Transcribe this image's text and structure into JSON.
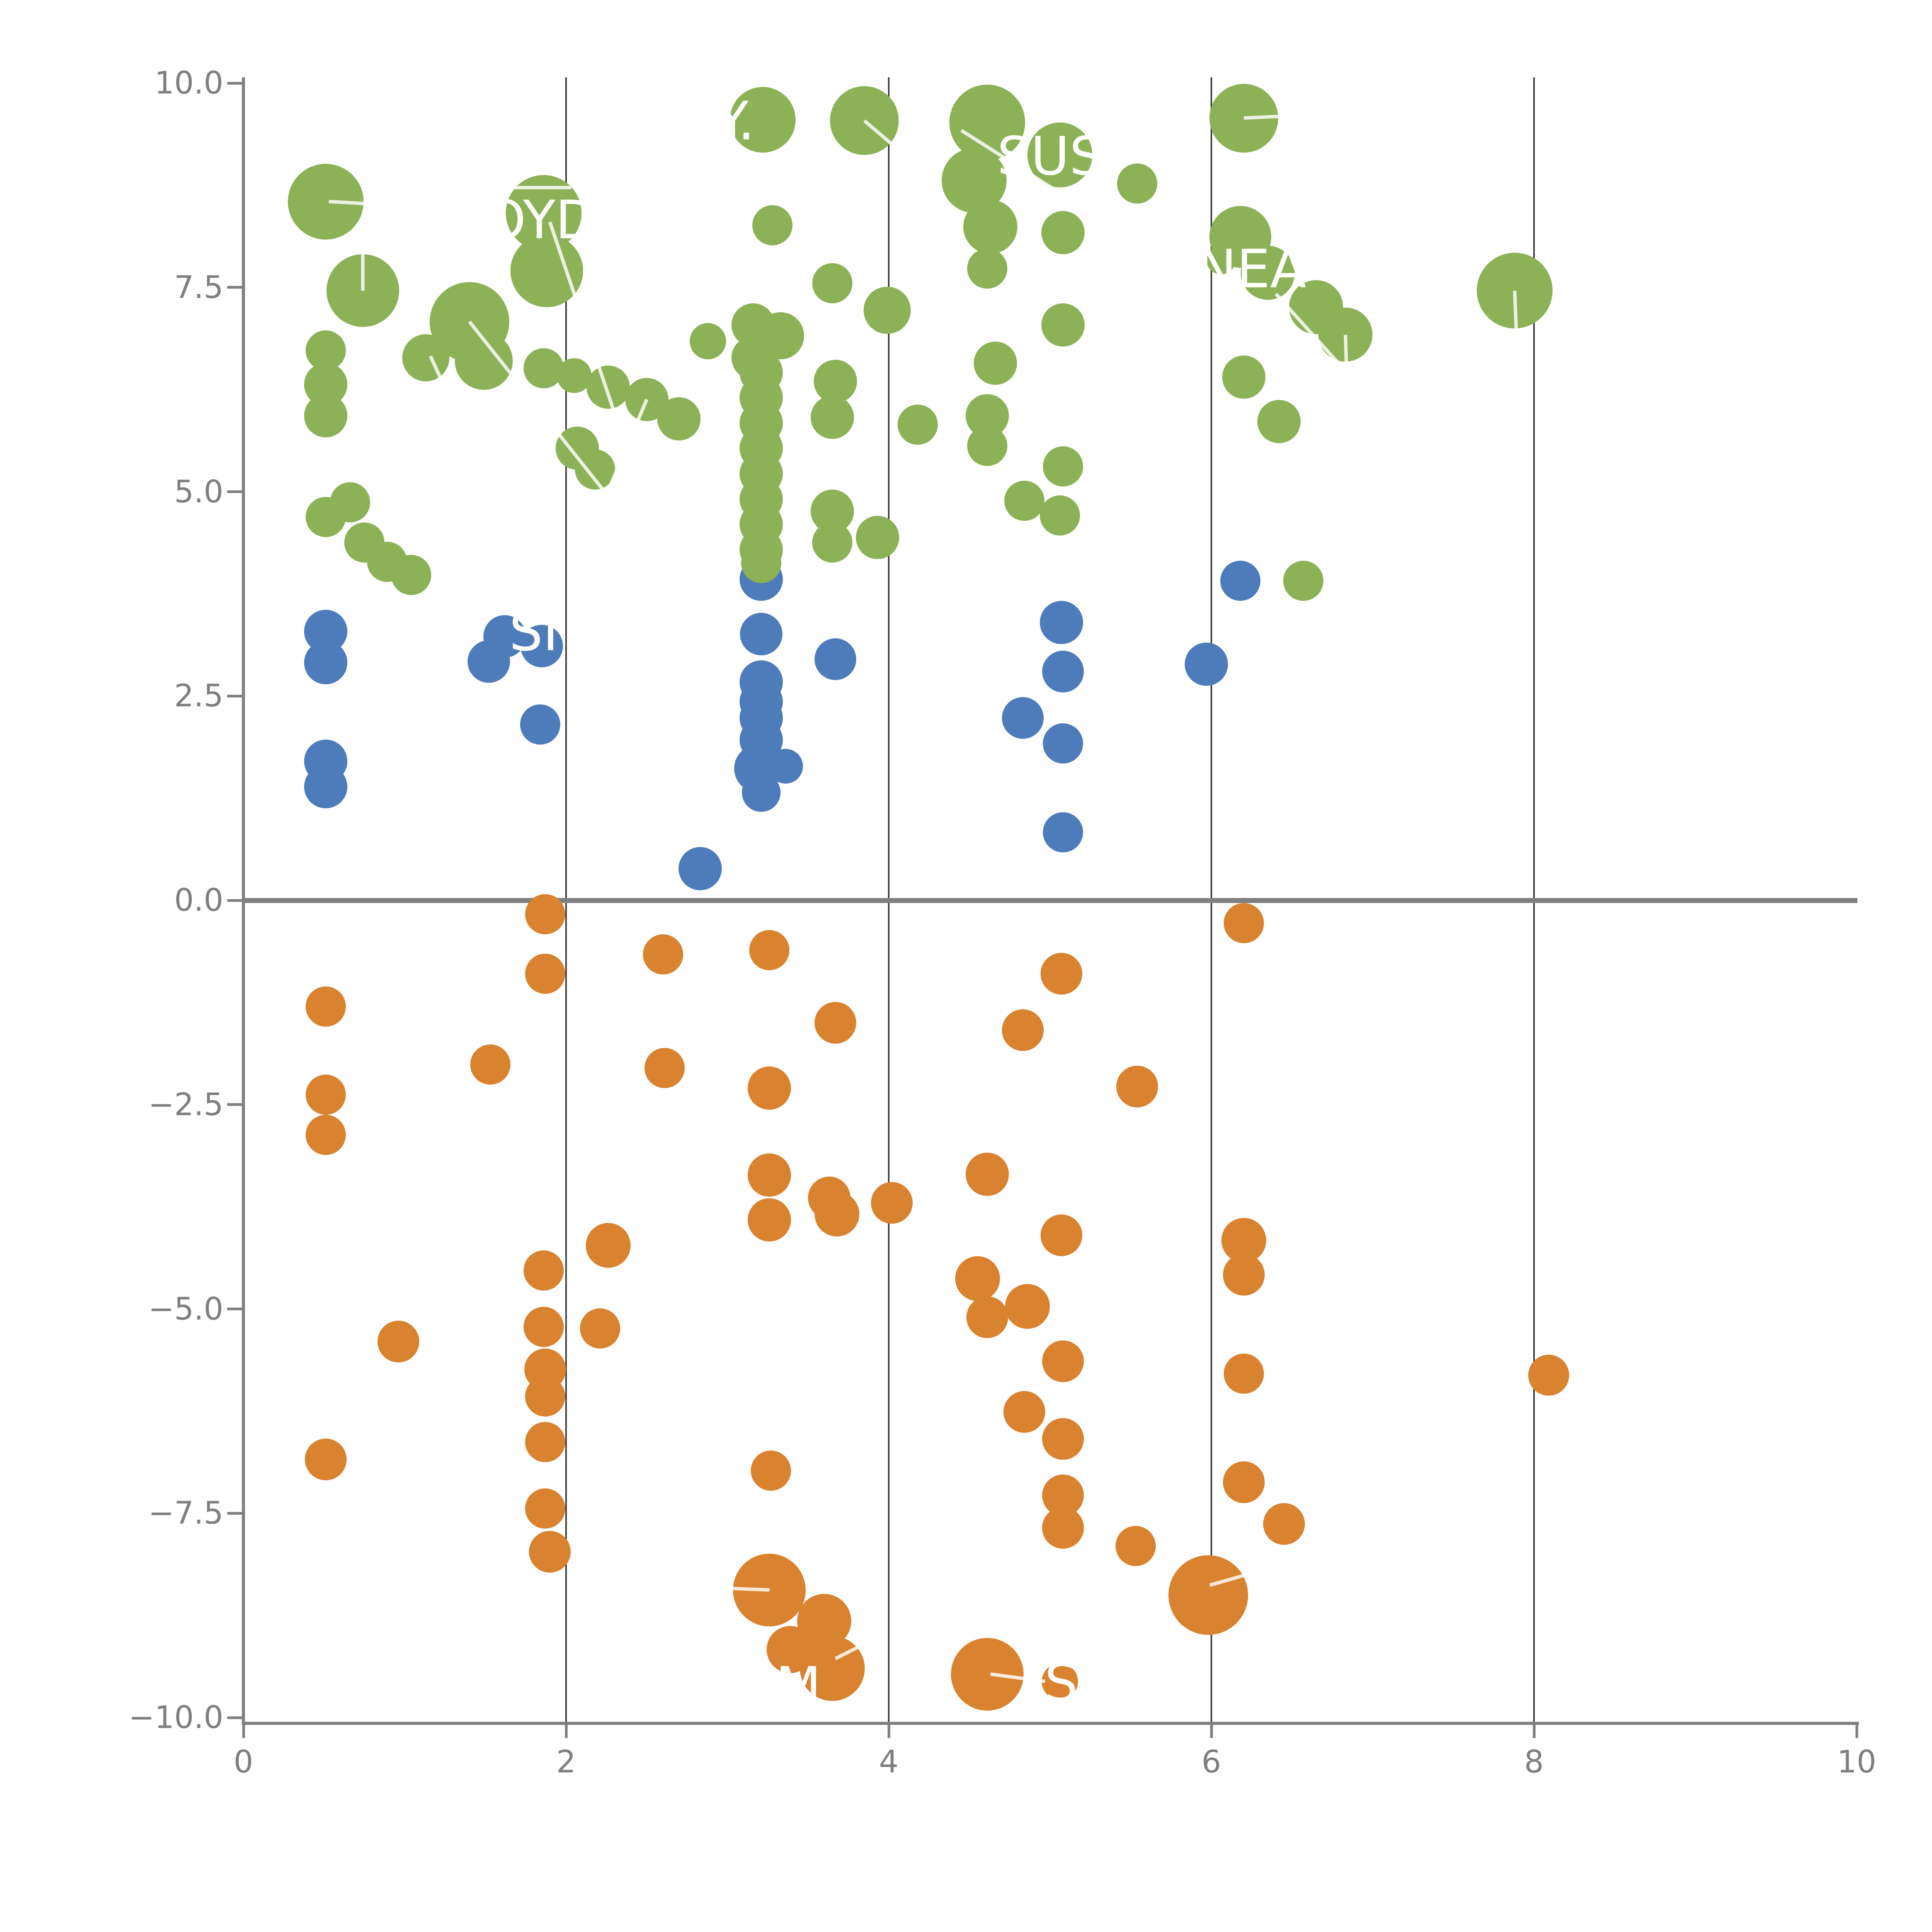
{
  "chart_data": {
    "type": "scatter",
    "title": "",
    "xlabel": "",
    "ylabel": "",
    "xlim": [
      0,
      10
    ],
    "ylim": [
      -10.1,
      10.1
    ],
    "grid": "vertical-only",
    "legend": "none",
    "x_ticks": [
      {
        "v": 0,
        "label": "0"
      },
      {
        "v": 2,
        "label": "2"
      },
      {
        "v": 4,
        "label": "4"
      },
      {
        "v": 6,
        "label": "6"
      },
      {
        "v": 8,
        "label": "8"
      },
      {
        "v": 10,
        "label": "10"
      }
    ],
    "y_ticks": [
      {
        "v": 10,
        "label": "10.0"
      },
      {
        "v": 7.5,
        "label": "7.5"
      },
      {
        "v": 5,
        "label": "5.0"
      },
      {
        "v": 2.5,
        "label": "2.5"
      },
      {
        "v": 0,
        "label": "0.0"
      },
      {
        "v": -2.5,
        "label": "−2.5"
      },
      {
        "v": -5,
        "label": "−5.0"
      },
      {
        "v": -7.5,
        "label": "−7.5"
      },
      {
        "v": -10,
        "label": "−10.0"
      }
    ],
    "gridlines_x": [
      2,
      4,
      6,
      8
    ],
    "zero_line_y": 0,
    "series": [
      {
        "name": "blue",
        "color": "#4E7CBB",
        "points": [
          [
            0.51,
            3.29,
            56
          ],
          [
            0.51,
            2.91,
            56
          ],
          [
            0.51,
            1.7,
            56
          ],
          [
            0.51,
            1.39,
            56
          ],
          [
            1.62,
            3.23,
            55
          ],
          [
            1.52,
            2.92,
            55
          ],
          [
            1.85,
            3.11,
            55
          ],
          [
            1.84,
            2.15,
            52
          ],
          [
            2.83,
            0.39,
            56
          ],
          [
            3.21,
            3.93,
            56
          ],
          [
            3.21,
            3.26,
            55
          ],
          [
            3.21,
            2.67,
            56
          ],
          [
            3.21,
            2.43,
            56
          ],
          [
            3.21,
            2.23,
            56
          ],
          [
            3.21,
            1.96,
            56
          ],
          [
            3.19,
            1.61,
            62
          ],
          [
            3.36,
            1.64,
            45
          ],
          [
            3.21,
            1.32,
            50
          ],
          [
            3.67,
            2.95,
            54
          ],
          [
            5.07,
            3.4,
            56
          ],
          [
            5.08,
            2.8,
            54
          ],
          [
            4.83,
            2.23,
            54
          ],
          [
            5.08,
            1.92,
            52
          ],
          [
            5.08,
            0.83,
            52
          ],
          [
            5.97,
            2.89,
            56
          ],
          [
            6.18,
            3.91,
            52
          ]
        ]
      },
      {
        "name": "green",
        "color": "#8CB156",
        "points": [
          [
            0.51,
            8.55,
            98
          ],
          [
            0.74,
            7.46,
            94
          ],
          [
            1.86,
            8.41,
            98
          ],
          [
            1.88,
            7.7,
            94
          ],
          [
            3.22,
            9.55,
            85
          ],
          [
            3.28,
            8.26,
            52
          ],
          [
            1.4,
            7.08,
            103
          ],
          [
            1.49,
            6.6,
            75
          ],
          [
            1.13,
            6.64,
            61
          ],
          [
            0.51,
            6.73,
            52
          ],
          [
            0.51,
            6.31,
            56
          ],
          [
            0.51,
            5.93,
            56
          ],
          [
            1.86,
            6.51,
            52
          ],
          [
            2.05,
            6.42,
            45
          ],
          [
            2.26,
            6.28,
            56
          ],
          [
            2.5,
            6.13,
            56
          ],
          [
            2.7,
            5.89,
            56
          ],
          [
            2.88,
            6.84,
            47
          ],
          [
            3.16,
            7.04,
            56
          ],
          [
            3.33,
            6.91,
            61
          ],
          [
            3.16,
            6.64,
            56
          ],
          [
            2.07,
            5.53,
            56
          ],
          [
            2.18,
            5.27,
            52
          ],
          [
            0.66,
            4.87,
            52
          ],
          [
            0.51,
            4.69,
            52
          ],
          [
            0.75,
            4.38,
            52
          ],
          [
            0.89,
            4.14,
            52
          ],
          [
            1.04,
            3.98,
            52
          ],
          [
            3.21,
            6.46,
            56
          ],
          [
            3.21,
            6.15,
            56
          ],
          [
            3.21,
            5.84,
            56
          ],
          [
            3.21,
            5.53,
            56
          ],
          [
            3.21,
            5.22,
            56
          ],
          [
            3.21,
            4.91,
            56
          ],
          [
            3.21,
            4.6,
            56
          ],
          [
            3.21,
            4.29,
            56
          ],
          [
            3.21,
            4.13,
            52
          ],
          [
            3.85,
            9.54,
            89
          ],
          [
            4.61,
            9.52,
            98
          ],
          [
            5.06,
            9.12,
            84
          ],
          [
            4.53,
            8.81,
            84
          ],
          [
            4.63,
            8.24,
            70
          ],
          [
            4.61,
            7.73,
            52
          ],
          [
            5.08,
            8.17,
            56
          ],
          [
            5.54,
            8.77,
            52
          ],
          [
            5.08,
            7.04,
            56
          ],
          [
            3.65,
            7.55,
            52
          ],
          [
            3.99,
            7.22,
            61
          ],
          [
            3.67,
            6.35,
            56
          ],
          [
            3.65,
            5.91,
            56
          ],
          [
            4.66,
            6.57,
            56
          ],
          [
            4.18,
            5.82,
            52
          ],
          [
            4.61,
            5.93,
            56
          ],
          [
            4.61,
            5.56,
            52
          ],
          [
            5.08,
            5.31,
            52
          ],
          [
            4.84,
            4.89,
            52
          ],
          [
            5.06,
            4.71,
            52
          ],
          [
            3.65,
            4.76,
            56
          ],
          [
            3.65,
            4.38,
            52
          ],
          [
            3.93,
            4.44,
            56
          ],
          [
            6.2,
            9.57,
            89
          ],
          [
            6.18,
            8.12,
            80
          ],
          [
            6.06,
            7.84,
            38
          ],
          [
            6.35,
            7.68,
            70
          ],
          [
            6.65,
            7.26,
            70
          ],
          [
            6.83,
            6.92,
            70
          ],
          [
            7.88,
            7.46,
            98
          ],
          [
            6.2,
            6.4,
            56
          ],
          [
            6.42,
            5.86,
            56
          ],
          [
            6.57,
            3.91,
            52
          ]
        ]
      },
      {
        "name": "orange",
        "color": "#D9822F",
        "points": [
          [
            1.87,
            -0.17,
            52
          ],
          [
            1.87,
            -0.9,
            52
          ],
          [
            0.51,
            -1.3,
            52
          ],
          [
            1.53,
            -2.01,
            52
          ],
          [
            0.51,
            -2.38,
            52
          ],
          [
            0.51,
            -2.87,
            52
          ],
          [
            2.6,
            -0.66,
            52
          ],
          [
            3.26,
            -0.61,
            52
          ],
          [
            2.61,
            -2.05,
            52
          ],
          [
            3.26,
            -2.3,
            56
          ],
          [
            3.26,
            -3.36,
            56
          ],
          [
            3.26,
            -3.91,
            56
          ],
          [
            6.2,
            -0.28,
            52
          ],
          [
            5.07,
            -0.9,
            54
          ],
          [
            3.67,
            -1.5,
            54
          ],
          [
            4.83,
            -1.59,
            54
          ],
          [
            5.54,
            -2.28,
            54
          ],
          [
            4.61,
            -3.35,
            56
          ],
          [
            3.63,
            -3.64,
            55
          ],
          [
            3.68,
            -3.84,
            58
          ],
          [
            4.02,
            -3.7,
            54
          ],
          [
            5.07,
            -4.1,
            54
          ],
          [
            1.86,
            -4.53,
            52
          ],
          [
            2.26,
            -4.22,
            58
          ],
          [
            0.96,
            -5.4,
            54
          ],
          [
            1.86,
            -5.22,
            52
          ],
          [
            2.21,
            -5.24,
            52
          ],
          [
            1.87,
            -5.74,
            54
          ],
          [
            1.87,
            -6.07,
            52
          ],
          [
            0.51,
            -6.84,
            54
          ],
          [
            1.87,
            -6.63,
            52
          ],
          [
            1.87,
            -7.44,
            52
          ],
          [
            1.9,
            -7.97,
            54
          ],
          [
            3.27,
            -6.98,
            52
          ],
          [
            3.26,
            -8.44,
            94
          ],
          [
            4.55,
            -4.63,
            58
          ],
          [
            4.61,
            -5.1,
            54
          ],
          [
            4.86,
            -4.97,
            58
          ],
          [
            5.08,
            -5.64,
            54
          ],
          [
            4.84,
            -6.26,
            54
          ],
          [
            5.08,
            -6.59,
            54
          ],
          [
            5.08,
            -7.28,
            54
          ],
          [
            5.08,
            -7.68,
            54
          ],
          [
            5.53,
            -7.9,
            52
          ],
          [
            5.98,
            -8.5,
            103
          ],
          [
            6.2,
            -4.16,
            58
          ],
          [
            6.2,
            -4.58,
            54
          ],
          [
            6.2,
            -5.79,
            52
          ],
          [
            6.2,
            -7.12,
            54
          ],
          [
            6.45,
            -7.63,
            54
          ],
          [
            8.09,
            -5.81,
            53
          ],
          [
            3.6,
            -8.82,
            70
          ],
          [
            3.65,
            -9.4,
            84
          ],
          [
            3.39,
            -9.17,
            61
          ],
          [
            4.61,
            -9.47,
            94
          ],
          [
            5.06,
            -9.56,
            47
          ]
        ]
      }
    ],
    "annotations": [
      {
        "text": "Y.",
        "x": 3.05,
        "y": 9.53
      },
      {
        "text": "OYD",
        "x": 1.84,
        "y": 8.32
      },
      {
        "text": "SUS",
        "x": 5.0,
        "y": 9.1
      },
      {
        "text": "NEA",
        "x": 6.25,
        "y": 7.72
      },
      {
        "text": "SI",
        "x": 1.8,
        "y": 3.28
      },
      {
        "text": "M",
        "x": 3.44,
        "y": -9.62
      },
      {
        "text": "S",
        "x": 5.07,
        "y": -9.58
      }
    ],
    "leader_lines": [
      [
        0.53,
        8.55,
        0.97,
        8.5
      ],
      [
        1.64,
        8.72,
        2.03,
        8.72
      ],
      [
        1.9,
        8.3,
        2.36,
        5.62
      ],
      [
        0.74,
        7.46,
        0.74,
        7.97
      ],
      [
        1.4,
        7.08,
        2.35,
        4.72
      ],
      [
        2.5,
        6.13,
        2.1,
        4.27
      ],
      [
        1.16,
        6.66,
        1.33,
        5.92
      ],
      [
        3.85,
        9.54,
        4.1,
        9.12
      ],
      [
        4.45,
        9.42,
        5.12,
        8.58
      ],
      [
        6.2,
        9.57,
        6.52,
        9.6
      ],
      [
        6.4,
        7.42,
        6.82,
        6.5
      ],
      [
        6.83,
        6.92,
        6.84,
        6.3
      ],
      [
        7.88,
        7.46,
        7.89,
        6.95
      ],
      [
        3.0,
        -8.42,
        3.26,
        -8.44
      ],
      [
        5.99,
        -8.38,
        6.22,
        -8.25
      ],
      [
        4.63,
        -9.47,
        4.97,
        -9.56
      ],
      [
        3.67,
        -9.28,
        3.9,
        -9.05
      ]
    ]
  },
  "colors": {
    "background": "#ffffff",
    "green_series": "#8CB156",
    "blue_series": "#4E7CBB",
    "orange_series": "#D9822F",
    "axis": "#808080",
    "gridline": "#3b3b3b",
    "tick_text": "#7f7f7f",
    "annotation_text": "#ffffff"
  }
}
